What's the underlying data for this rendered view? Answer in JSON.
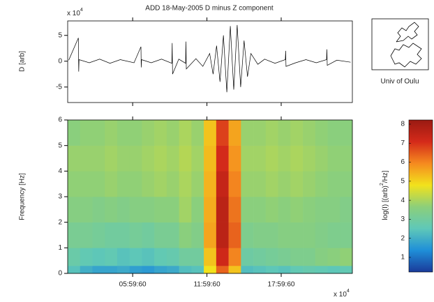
{
  "chart_data": [
    {
      "type": "line",
      "title": "ADD  18-May-2005  D minus Z component",
      "y_label": "D [arb]",
      "y_multiplier": {
        "base": "x 10",
        "exponent": "4"
      },
      "x": [
        3000,
        5800,
        5900,
        6000,
        9000,
        12000,
        15000,
        18000,
        22000,
        24000,
        24100,
        24200,
        27000,
        30000,
        33000,
        33100,
        33200,
        35000,
        37000,
        37100,
        37200,
        40000,
        42000,
        44000,
        45000,
        46000,
        47000,
        48000,
        49000,
        50000,
        51000,
        52000,
        53000,
        54000,
        55000,
        56000,
        58000,
        60000,
        63000,
        66000,
        66100,
        66200,
        69000,
        72000,
        75000,
        78000,
        78100,
        78200,
        81000,
        85000
      ],
      "values": [
        0.2,
        4.5,
        -2,
        0.3,
        -0.3,
        0.4,
        -0.4,
        0.3,
        -0.3,
        2.8,
        -1.2,
        0.3,
        -0.3,
        0.4,
        -0.4,
        3.5,
        -2.5,
        0.4,
        -0.4,
        3.8,
        -1.5,
        0.5,
        -1,
        1.5,
        -2.5,
        3,
        -4,
        5,
        -6,
        6.8,
        -5.5,
        7,
        -5,
        4,
        -3,
        1.5,
        -0.6,
        0.4,
        -0.4,
        0.3,
        2,
        -1,
        -0.3,
        0.3,
        -0.3,
        0.3,
        2.3,
        -0.8,
        0.2,
        -0.2
      ],
      "color": "#000000",
      "xlim": [
        2700,
        85500
      ],
      "ylim": [
        -8,
        7.8
      ],
      "yticks": [
        -5,
        0,
        5
      ]
    },
    {
      "type": "heatmap",
      "y_label": "Frequency [Hz]",
      "x_multiplier": {
        "base": "x 10",
        "exponent": "4"
      },
      "xlim": [
        2700,
        85500
      ],
      "ylim": [
        0,
        6
      ],
      "yticks": [
        0,
        1,
        2,
        3,
        4,
        5,
        6
      ],
      "xticks": [
        {
          "value": 21600,
          "label": "05:59:60"
        },
        {
          "value": 43200,
          "label": "11:59:60"
        },
        {
          "value": 64800,
          "label": "17:59:60"
        }
      ],
      "x_bins": [
        2700,
        6300,
        9900,
        13500,
        17100,
        20700,
        24300,
        27900,
        31500,
        35100,
        38700,
        42300,
        45900,
        49500,
        53100,
        56700,
        60300,
        63900,
        67500,
        71100,
        74700,
        78300,
        81900,
        85500
      ],
      "y_bins": [
        0,
        0.3,
        1,
        2,
        3,
        4,
        5,
        6
      ],
      "z": [
        [
          2.4,
          2.0,
          1.8,
          1.8,
          1.9,
          1.7,
          1.6,
          1.8,
          1.9,
          2.3,
          2.4,
          4.8,
          6.4,
          5.2,
          2.3,
          2.4,
          2.5,
          2.4,
          2.6,
          2.7,
          2.6,
          2.5,
          2.6
        ],
        [
          2.8,
          2.6,
          2.5,
          2.6,
          2.4,
          2.5,
          2.4,
          2.6,
          2.7,
          3.0,
          3.0,
          5.2,
          7.2,
          6.0,
          2.9,
          3.0,
          3.1,
          3.2,
          3.3,
          3.3,
          3.5,
          3.6,
          3.7
        ],
        [
          3.2,
          3.2,
          3.1,
          3.0,
          3.0,
          3.1,
          3.0,
          3.2,
          3.2,
          3.6,
          3.4,
          5.6,
          7.6,
          6.4,
          3.3,
          3.4,
          3.4,
          3.5,
          3.5,
          3.5,
          3.4,
          3.3,
          3.3
        ],
        [
          3.5,
          3.5,
          3.4,
          3.5,
          3.4,
          3.5,
          3.5,
          3.6,
          3.6,
          3.9,
          3.6,
          5.5,
          7.6,
          6.2,
          3.6,
          3.6,
          3.7,
          3.6,
          3.7,
          3.6,
          3.5,
          3.5,
          3.4
        ],
        [
          3.7,
          3.7,
          3.7,
          3.8,
          3.7,
          3.7,
          3.8,
          3.9,
          3.8,
          4.0,
          3.8,
          5.4,
          7.4,
          6.0,
          3.8,
          3.8,
          3.9,
          3.8,
          3.9,
          3.8,
          3.7,
          3.6,
          3.6
        ],
        [
          3.8,
          3.8,
          3.8,
          3.9,
          3.8,
          3.8,
          3.9,
          4.0,
          3.9,
          4.1,
          3.9,
          5.3,
          7.1,
          5.8,
          3.9,
          3.9,
          4.0,
          3.9,
          4.0,
          3.9,
          3.8,
          3.7,
          3.7
        ],
        [
          3.6,
          3.7,
          3.7,
          3.8,
          3.7,
          3.7,
          3.8,
          3.9,
          3.8,
          4.0,
          3.8,
          5.2,
          6.8,
          5.6,
          3.8,
          3.8,
          3.9,
          3.8,
          3.9,
          3.8,
          3.7,
          3.6,
          3.6
        ]
      ],
      "colormap": [
        "#1a3a9a",
        "#1f8fd8",
        "#5fc8b8",
        "#8ccf7a",
        "#f2e21c",
        "#f58a1f",
        "#d42a1a",
        "#9a1a12"
      ],
      "clim": [
        0.23,
        8.22
      ],
      "colorbar_ticks": [
        1,
        2,
        3,
        4,
        5,
        6,
        7,
        8
      ],
      "colorbar_label": [
        "log(I) [(arb)",
        "2",
        "/Hz]"
      ]
    }
  ],
  "logo": {
    "caption": "Univ of Oulu"
  }
}
